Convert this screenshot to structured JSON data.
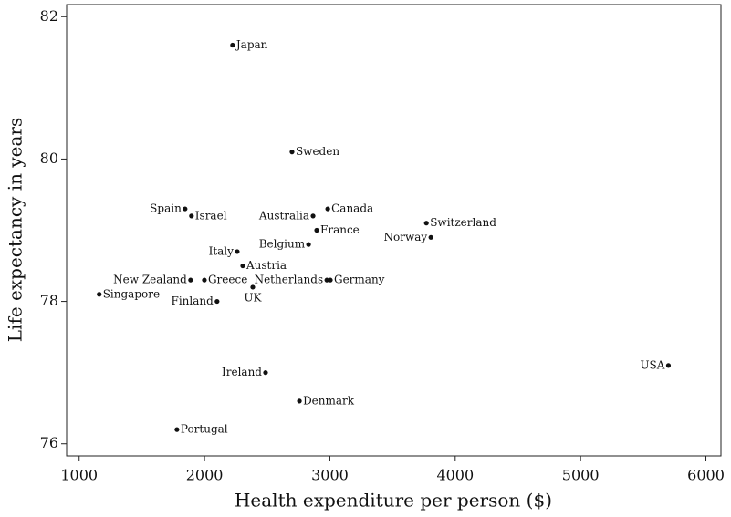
{
  "chart_data": {
    "type": "scatter",
    "x_label": "Health expenditure per person ($)",
    "y_label": "Life expectancy in years",
    "point_labels": [
      "Japan",
      "Sweden",
      "Spain",
      "Israel",
      "Australia",
      "Canada",
      "France",
      "Switzerland",
      "Norway",
      "Belgium",
      "Italy",
      "Austria",
      "New Zealand",
      "Greece",
      "Netherlands",
      "Germany",
      "UK",
      "Singapore",
      "Finland",
      "Ireland",
      "USA",
      "Denmark",
      "Portugal"
    ],
    "x": [
      2224,
      2698,
      1845,
      1896,
      2866,
      2983,
      2895,
      3770,
      3806,
      2830,
      2261,
      2305,
      1889,
      1999,
      2976,
      3004,
      2385,
      1160,
      2100,
      2487,
      5701,
      2757,
      1780
    ],
    "values": [
      81.6,
      80.1,
      79.3,
      79.2,
      79.2,
      79.3,
      79.0,
      79.1,
      78.9,
      78.8,
      78.7,
      78.5,
      78.3,
      78.3,
      78.3,
      78.3,
      78.2,
      78.1,
      78.0,
      77.0,
      77.1,
      76.6,
      76.2
    ],
    "color": "#111111",
    "xlim": [
      900,
      6120
    ],
    "xticks": [
      1000,
      2000,
      3000,
      4000,
      5000,
      6000
    ],
    "ylim": [
      75.83,
      82.17
    ],
    "yticks": [
      76,
      78,
      80,
      82
    ]
  }
}
